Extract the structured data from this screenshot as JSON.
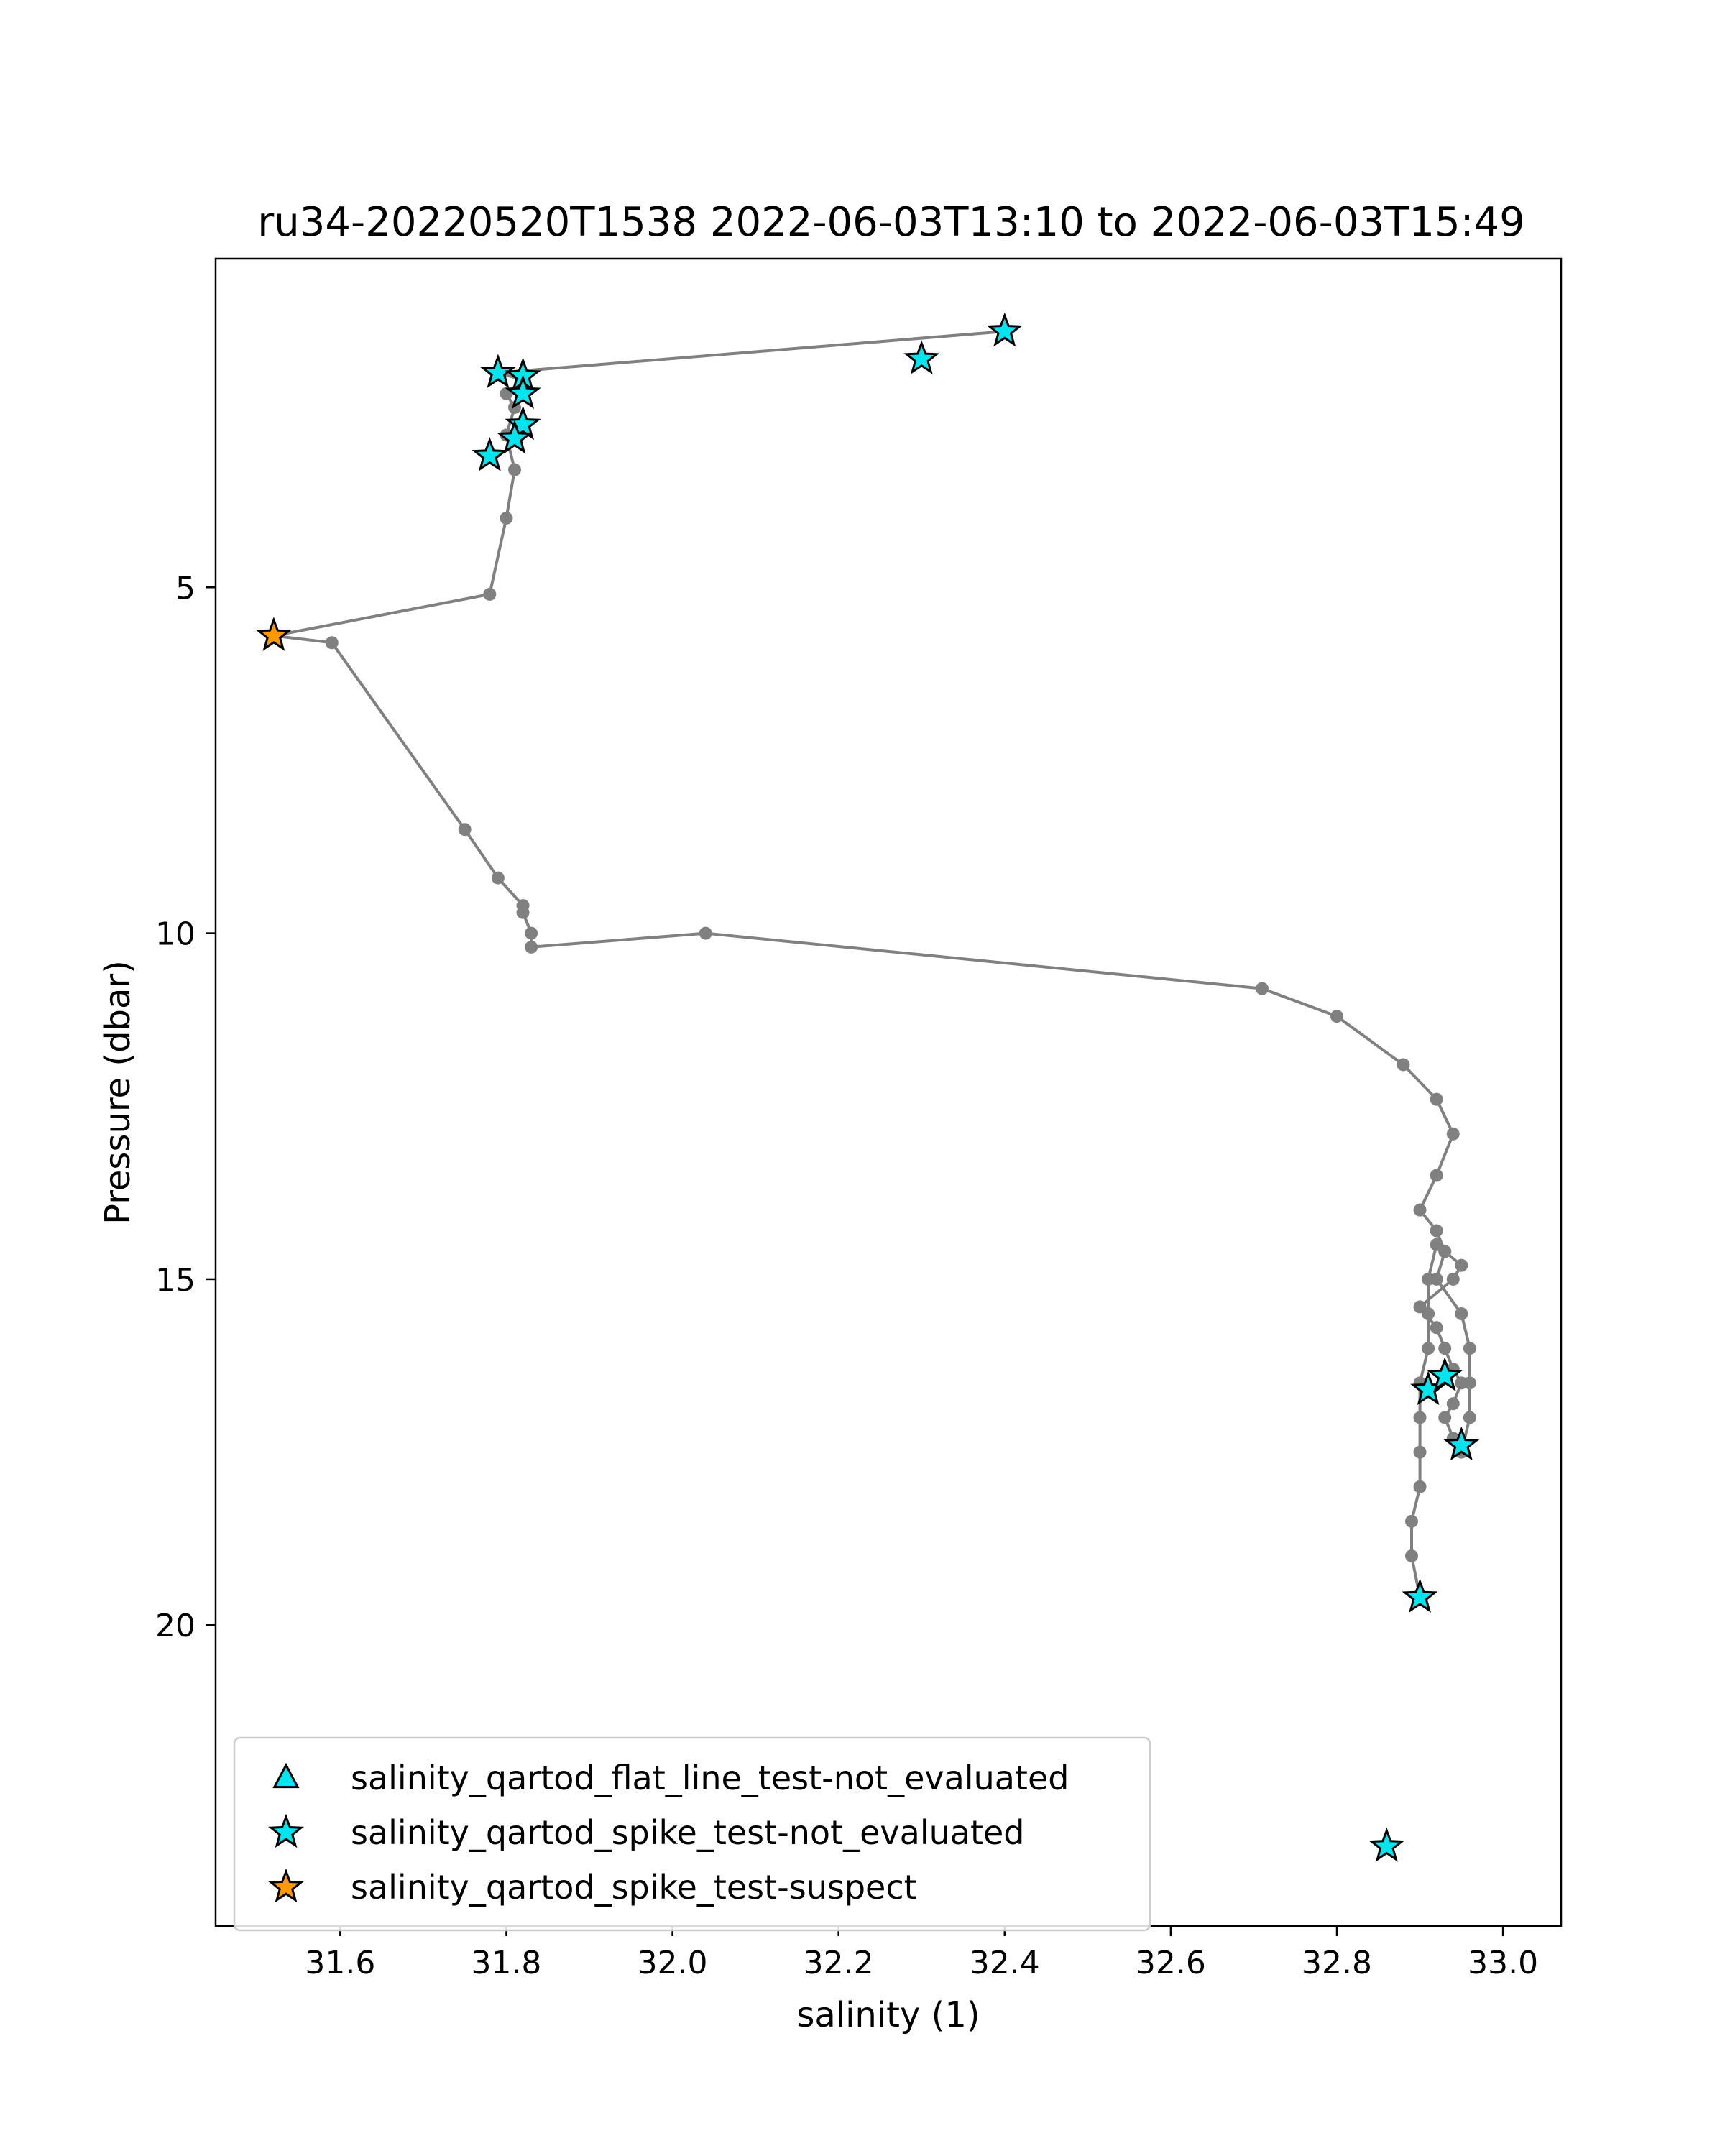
{
  "chart_data": {
    "type": "line",
    "title": "ru34-20220520T1538 2022-06-03T13:10 to 2022-06-03T15:49",
    "xlabel": "salinity (1)",
    "ylabel": "Pressure (dbar)",
    "xlim": [
      31.45,
      33.07
    ],
    "ylim": [
      24.35,
      0.25
    ],
    "y_inverted": true,
    "grid": false,
    "legend_position": "lower-left",
    "x_ticks": [
      "31.6",
      "31.8",
      "32.0",
      "32.2",
      "32.4",
      "32.6",
      "32.8",
      "33.0"
    ],
    "y_ticks": [
      "5",
      "10",
      "15",
      "20"
    ],
    "profile_color": "#808080",
    "profile": {
      "name": "salinity",
      "x": [
        32.4,
        31.79,
        31.82,
        31.8,
        31.81,
        31.8,
        31.81,
        31.8,
        31.78,
        31.52,
        31.59,
        31.75,
        31.79,
        31.82,
        31.82,
        31.83,
        31.83,
        32.04,
        32.71,
        32.8,
        32.88,
        32.92,
        32.94,
        32.92,
        32.9,
        32.92,
        32.93,
        32.95,
        32.94,
        32.9,
        32.92,
        32.93,
        32.94,
        32.95,
        32.94,
        32.93,
        32.94,
        32.95,
        32.96,
        32.96,
        32.96,
        32.95,
        32.92,
        32.93,
        32.92,
        32.91,
        32.91,
        32.91,
        32.9,
        32.9,
        32.9,
        32.9,
        32.89,
        32.89,
        32.9
      ],
      "y": [
        1.3,
        1.9,
        2.0,
        2.2,
        2.4,
        2.8,
        3.3,
        4.0,
        5.1,
        5.7,
        5.8,
        8.5,
        9.2,
        9.6,
        9.7,
        10.0,
        10.2,
        10.0,
        10.8,
        11.2,
        11.9,
        12.4,
        12.9,
        13.5,
        14.0,
        14.3,
        14.6,
        14.8,
        15.0,
        15.4,
        15.7,
        16.0,
        16.3,
        16.5,
        16.8,
        17.0,
        17.3,
        17.5,
        17.0,
        16.5,
        16.0,
        15.5,
        15.0,
        14.6,
        14.5,
        15.0,
        15.5,
        16.0,
        16.5,
        17.0,
        17.5,
        18.0,
        18.5,
        19.0,
        19.6
      ]
    },
    "series": [
      {
        "name": "salinity_qartod_flat_line_test-not_evaluated",
        "marker": "triangle",
        "color": "#00e5ee",
        "x": [],
        "y": []
      },
      {
        "name": "salinity_qartod_spike_test-not_evaluated",
        "marker": "star",
        "color": "#00e5ee",
        "x": [
          32.4,
          32.3,
          31.79,
          31.82,
          31.82,
          31.82,
          31.81,
          31.78,
          32.91,
          32.93,
          32.95,
          32.9,
          32.86
        ],
        "y": [
          1.3,
          1.7,
          1.9,
          1.95,
          2.2,
          2.65,
          2.85,
          3.1,
          16.6,
          16.4,
          17.4,
          19.6,
          23.2
        ]
      },
      {
        "name": "salinity_qartod_spike_test-suspect",
        "marker": "star",
        "color": "#ff9900",
        "x": [
          31.52
        ],
        "y": [
          5.7
        ]
      }
    ]
  }
}
